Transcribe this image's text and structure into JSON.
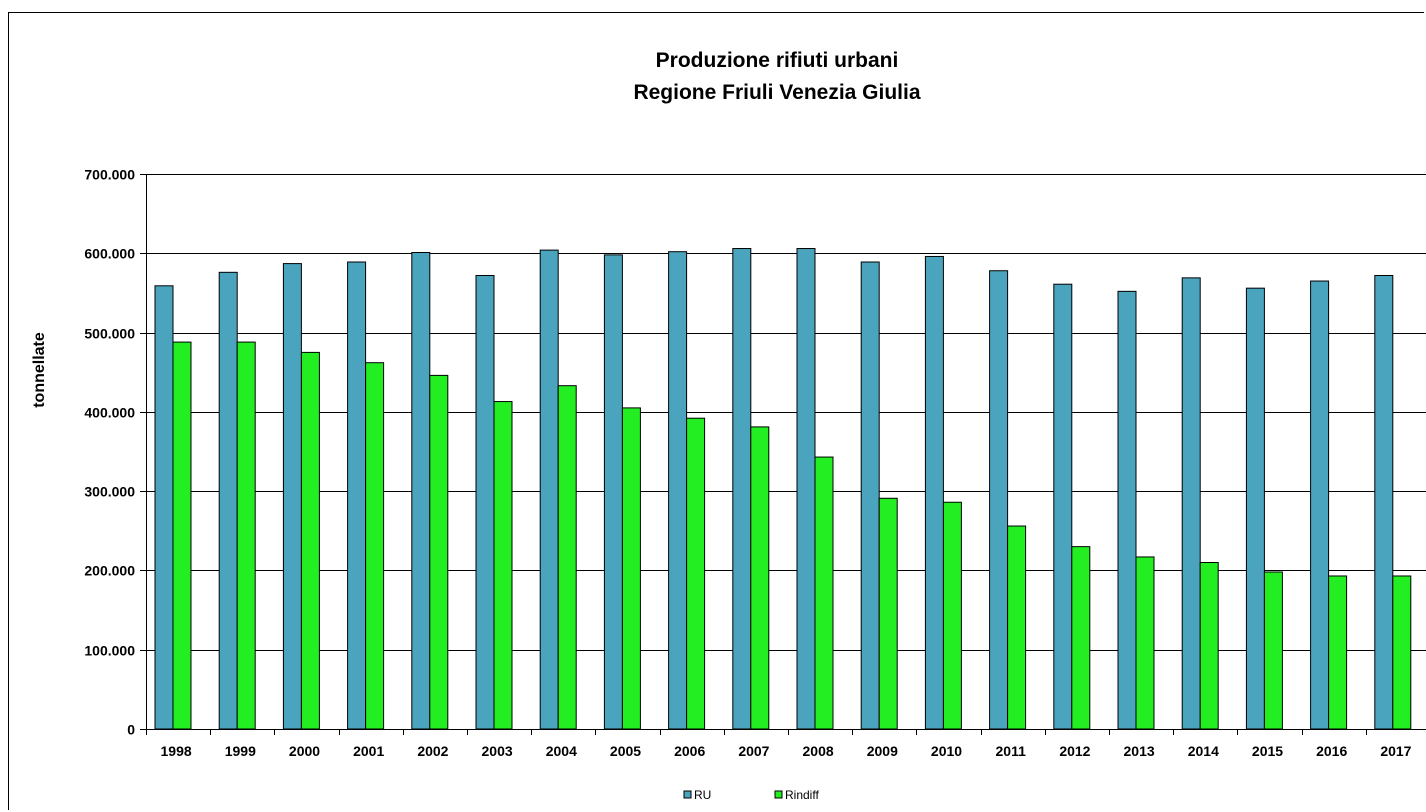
{
  "chart_data": {
    "type": "bar",
    "title": [
      "Produzione rifiuti urbani",
      "Regione Friuli Venezia Giulia"
    ],
    "xlabel": "",
    "ylabel": "tonnellate",
    "ylim": [
      0,
      700000
    ],
    "yticks": [
      0,
      100000,
      200000,
      300000,
      400000,
      500000,
      600000,
      700000
    ],
    "ytick_labels": [
      "0",
      "100.000",
      "200.000",
      "300.000",
      "400.000",
      "500.000",
      "600.000",
      "700.000"
    ],
    "grid": true,
    "legend_position": "bottom",
    "categories": [
      "1998",
      "1999",
      "2000",
      "2001",
      "2002",
      "2003",
      "2004",
      "2005",
      "2006",
      "2007",
      "2008",
      "2009",
      "2010",
      "2011",
      "2012",
      "2013",
      "2014",
      "2015",
      "2016",
      "2017"
    ],
    "series": [
      {
        "name": "RU",
        "color": "#4BA4BE",
        "values": [
          559000,
          576000,
          587000,
          589000,
          601000,
          572000,
          604000,
          598000,
          602000,
          606000,
          606000,
          589000,
          596000,
          578000,
          561000,
          552000,
          569000,
          556000,
          565000,
          572000
        ]
      },
      {
        "name": "Rindiff",
        "color": "#22EE22",
        "values": [
          488000,
          488000,
          475000,
          462000,
          446000,
          413000,
          433000,
          405000,
          392000,
          381000,
          343000,
          291000,
          286000,
          256000,
          230000,
          217000,
          210000,
          198000,
          193000,
          193000
        ]
      }
    ]
  }
}
